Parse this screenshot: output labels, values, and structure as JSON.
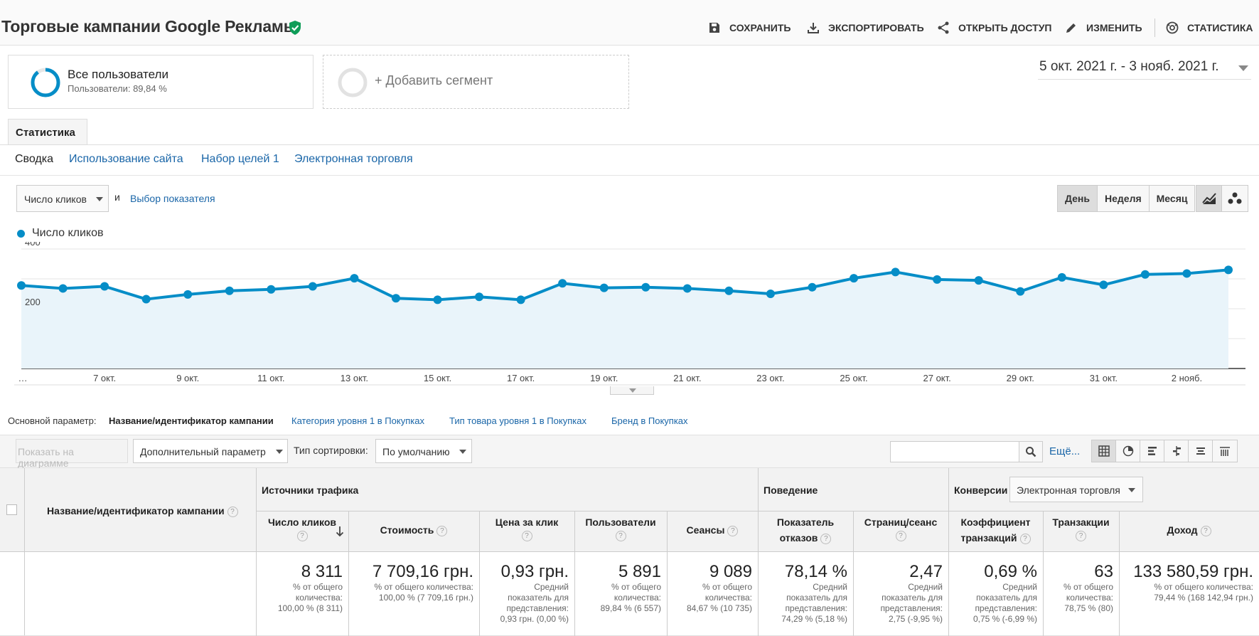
{
  "header": {
    "title": "Торговые кампании Google Рекламы",
    "actions": {
      "save": "СОХРАНИТЬ",
      "export": "ЭКСПОРТИРОВАТЬ",
      "share": "ОТКРЫТЬ ДОСТУП",
      "edit": "ИЗМЕНИТЬ",
      "insights": "СТАТИСТИКА"
    }
  },
  "segments": {
    "all_users": {
      "title": "Все пользователи",
      "subtitle": "Пользователи: 89,84 %",
      "share": 0.8984
    },
    "add": "+ Добавить сегмент"
  },
  "date_range": "5 окт. 2021 г. - 3 нояб. 2021 г.",
  "tab": "Статистика",
  "subtabs": [
    "Сводка",
    "Использование сайта",
    "Набор целей 1",
    "Электронная торговля"
  ],
  "chart_controls": {
    "metric": "Число кликов",
    "and": "и",
    "choose_metric": "Выбор показателя",
    "periods": [
      "День",
      "Неделя",
      "Месяц"
    ],
    "active_period": "День"
  },
  "chart_data": {
    "type": "area",
    "series": [
      {
        "name": "Число кликов",
        "color": "#058dc7",
        "values": [
          278,
          268,
          275,
          232,
          248,
          260,
          265,
          275,
          302,
          235,
          230,
          240,
          230,
          285,
          270,
          272,
          268,
          260,
          250,
          272,
          302,
          323,
          298,
          295,
          258,
          305,
          280,
          315,
          318,
          330
        ]
      }
    ],
    "x_tick_labels": [
      "…",
      "7 окт.",
      "9 окт.",
      "11 окт.",
      "13 окт.",
      "15 окт.",
      "17 окт.",
      "19 окт.",
      "21 окт.",
      "23 окт.",
      "25 окт.",
      "27 окт.",
      "29 окт.",
      "31 окт.",
      "2 нояб."
    ],
    "y_ticks": [
      400,
      200
    ],
    "ylim": [
      0,
      400
    ],
    "grid": true,
    "legend": "top-left"
  },
  "dimensions": {
    "label": "Основной параметр:",
    "active": "Название/идентификатор кампании",
    "links": [
      "Категория уровня 1 в Покупках",
      "Тип товара уровня 1 в Покупках",
      "Бренд в Покупках"
    ]
  },
  "filters": {
    "plot_rows": "Показать на диаграмме",
    "secondary": "Дополнительный параметр",
    "sort_label": "Тип сортировки:",
    "sort_value": "По умолчанию",
    "search_placeholder": "",
    "more": "Ещё..."
  },
  "table": {
    "dimension_header": "Название/идентификатор кампании",
    "groups": {
      "acquisition": "Источники трафика",
      "behavior": "Поведение",
      "conversions": "Конверсии"
    },
    "conversion_select": "Электронная торговля",
    "columns": [
      {
        "label": "Число кликов",
        "total": "8 311",
        "sub": [
          "% от общего",
          "количества:",
          "100,00 % (8 311)"
        ]
      },
      {
        "label": "Стоимость",
        "total": "7 709,16 грн.",
        "sub": [
          "% от общего количества:",
          "100,00 % (7 709,16 грн.)"
        ]
      },
      {
        "label": "Цена за клик",
        "total": "0,93 грн.",
        "sub": [
          "Средний",
          "показатель для",
          "представления:",
          "0,93 грн. (0,00 %)"
        ]
      },
      {
        "label": "Пользователи",
        "total": "5 891",
        "sub": [
          "% от общего",
          "количества:",
          "89,84 % (6 557)"
        ]
      },
      {
        "label": "Сеансы",
        "total": "9 089",
        "sub": [
          "% от общего",
          "количества:",
          "84,67 % (10 735)"
        ]
      },
      {
        "label": "Показатель отказов",
        "label_lines": [
          "Показатель",
          "отказов"
        ],
        "total": "78,14 %",
        "sub": [
          "Средний",
          "показатель для",
          "представления:",
          "74,29 % (5,18 %)"
        ]
      },
      {
        "label": "Страниц/сеанс",
        "total": "2,47",
        "sub": [
          "Средний",
          "показатель для",
          "представления:",
          "2,75 (-9,95 %)"
        ]
      },
      {
        "label": "Коэффициент транзакций",
        "label_lines": [
          "Коэффициент",
          "транзакций"
        ],
        "total": "0,69 %",
        "sub": [
          "Средний",
          "показатель для",
          "представления:",
          "0,75 % (-6,99 %)"
        ]
      },
      {
        "label": "Транзакции",
        "total": "63",
        "sub": [
          "% от общего",
          "количества:",
          "78,75 % (80)"
        ]
      },
      {
        "label": "Доход",
        "total": "133 580,59 грн.",
        "sub": [
          "% от общего количества:",
          "79,44 % (168 142,94 грн.)"
        ]
      }
    ]
  }
}
